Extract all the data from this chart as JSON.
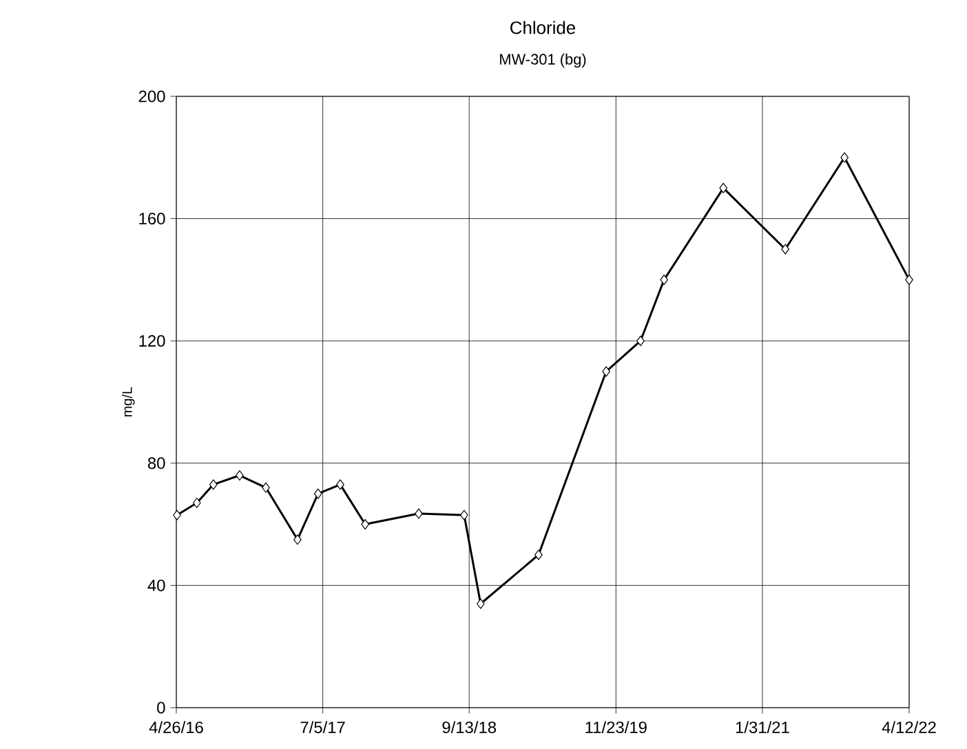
{
  "chart_data": {
    "type": "line",
    "title": "Chloride",
    "subtitle": "MW-301 (bg)",
    "ylabel": "mg/L",
    "x": [
      "2016-04-28",
      "2016-06-26",
      "2016-08-14",
      "2016-10-31",
      "2017-01-17",
      "2017-04-21",
      "2017-06-21",
      "2017-08-26",
      "2017-11-08",
      "2018-04-16",
      "2018-08-29",
      "2018-10-17",
      "2019-04-07",
      "2019-10-25",
      "2020-02-04",
      "2020-04-14",
      "2020-10-07",
      "2021-04-09",
      "2021-10-02",
      "2022-04-12"
    ],
    "series": [
      {
        "color": "#000000",
        "values": [
          63,
          67,
          73,
          76,
          72,
          55,
          70,
          73,
          60,
          63.5,
          63,
          34,
          50,
          110,
          120,
          140,
          170,
          150,
          180,
          140
        ]
      }
    ],
    "xlim": [
      "2016-04-26",
      "2022-04-12"
    ],
    "xticks": [
      {
        "value": "2016-04-26",
        "label": "4/26/16"
      },
      {
        "value": "2017-07-05",
        "label": "7/5/17"
      },
      {
        "value": "2018-09-13",
        "label": "9/13/18"
      },
      {
        "value": "2019-11-23",
        "label": "11/23/19"
      },
      {
        "value": "2021-01-31",
        "label": "1/31/21"
      },
      {
        "value": "2022-04-12",
        "label": "4/12/22"
      }
    ],
    "ylim": [
      0,
      200
    ],
    "yticks": [
      0,
      40,
      80,
      120,
      160,
      200
    ],
    "grid": true,
    "legend": false,
    "marker": "diamond",
    "line_style": "solid"
  }
}
